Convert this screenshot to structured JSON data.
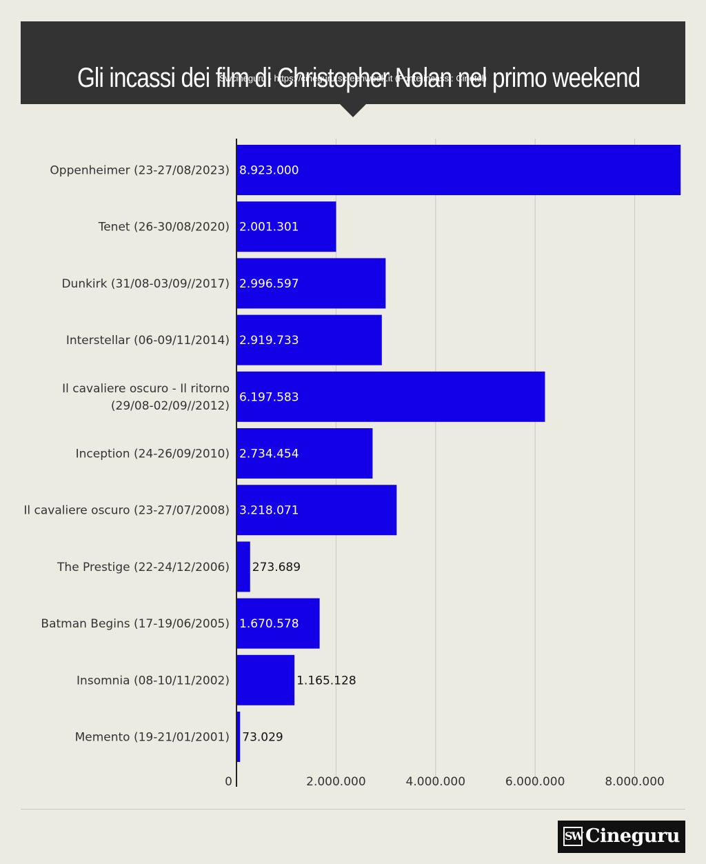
{
  "header": {
    "title": "Gli incassi dei film di Christopher Nolan nel primo weekend",
    "subtitle": "Swcineguru - https://cineguru.screenweek.it (Fonte incassi: Cinetel)"
  },
  "logo": {
    "mark": "SW",
    "text": "Cineguru"
  },
  "colors": {
    "background": "#ecebe2",
    "header": "#333333",
    "bar": "#1300e6",
    "grid": "#c8c8c0",
    "axis": "#222222"
  },
  "chart_data": {
    "type": "bar",
    "orientation": "horizontal",
    "categories": [
      "Oppenheimer (23-27/08/2023)",
      "Tenet (26-30/08/2020)",
      "Dunkirk (31/08-03/09//2017)",
      "Interstellar (06-09/11/2014)",
      "Il cavaliere oscuro - Il ritorno (29/08-02/09//2012)",
      "Inception (24-26/09/2010)",
      "Il cavaliere oscuro (23-27/07/2008)",
      "The Prestige (22-24/12/2006)",
      "Batman Begins (17-19/06/2005)",
      "Insomnia (08-10/11/2002)",
      "Memento (19-21/01/2001)"
    ],
    "category_lines": [
      [
        "Oppenheimer (23-27/08/2023)"
      ],
      [
        "Tenet (26-30/08/2020)"
      ],
      [
        "Dunkirk (31/08-03/09//2017)"
      ],
      [
        "Interstellar (06-09/11/2014)"
      ],
      [
        "Il cavaliere oscuro - Il ritorno",
        "(29/08-02/09//2012)"
      ],
      [
        "Inception (24-26/09/2010)"
      ],
      [
        "Il cavaliere oscuro (23-27/07/2008)"
      ],
      [
        "The Prestige (22-24/12/2006)"
      ],
      [
        "Batman Begins (17-19/06/2005)"
      ],
      [
        "Insomnia (08-10/11/2002)"
      ],
      [
        "Memento (19-21/01/2001)"
      ]
    ],
    "values": [
      8923000,
      2001301,
      2996597,
      2919733,
      6197583,
      2734454,
      3218071,
      273689,
      1670578,
      1165128,
      73029
    ],
    "value_labels": [
      "8.923.000",
      "2.001.301",
      "2.996.597",
      "2.919.733",
      "6.197.583",
      "2.734.454",
      "3.218.071",
      "273.689",
      "1.670.578",
      "1.165.128",
      "73.029"
    ],
    "xlim": [
      0,
      9000000
    ],
    "xticks": [
      0,
      2000000,
      4000000,
      6000000,
      8000000
    ],
    "xtick_labels": [
      "0",
      "2.000.000",
      "4.000.000",
      "6.000.000",
      "8.000.000"
    ],
    "grid": true,
    "xlabel": "",
    "ylabel": ""
  }
}
